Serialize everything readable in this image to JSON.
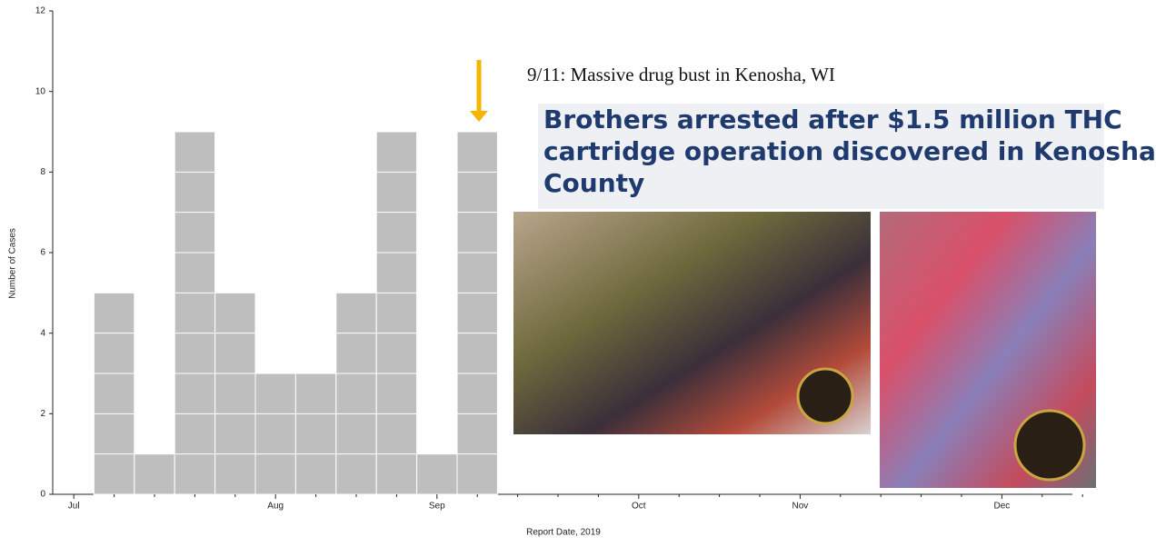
{
  "chart_data": {
    "type": "bar",
    "xlabel": "Report Date, 2019",
    "ylabel": "Number of Cases",
    "categories": [
      "Jul",
      null,
      null,
      null,
      null,
      "Aug",
      null,
      null,
      null,
      "Sep",
      null,
      null,
      null,
      null,
      "Oct",
      null,
      null,
      null,
      "Nov",
      null,
      null,
      null,
      null,
      "Dec",
      null,
      null
    ],
    "values": [
      0,
      5,
      1,
      9,
      5,
      3,
      3,
      5,
      9,
      1,
      9,
      0,
      0,
      0,
      0,
      0,
      0,
      0,
      0,
      0,
      0,
      0,
      0,
      0,
      0,
      0
    ],
    "color": "#bebebe",
    "ylim": [
      0,
      12
    ],
    "yticks": [
      0,
      2,
      4,
      6,
      8,
      10,
      12
    ],
    "annotation": "9/11:  Massive drug bust in Kenosha, WI",
    "headline": [
      "Brothers arrested after $1.5 million THC",
      "cartridge operation discovered in Kenosha",
      "County"
    ]
  }
}
